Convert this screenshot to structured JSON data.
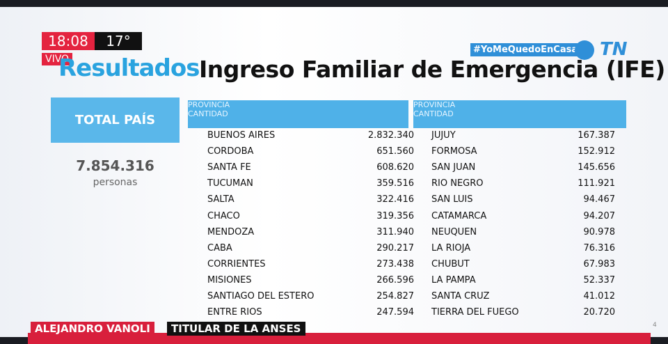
{
  "header": {
    "time": "18:08",
    "temperature": "17°",
    "live": "VIVO",
    "hashtag": "#YoMeQuedoEnCasa",
    "logo": "TN",
    "title_highlight": "Resultados",
    "title": "Ingreso Familiar de Emergencia (IFE)"
  },
  "total": {
    "label": "TOTAL PAÍS",
    "value": "7.854.316",
    "unit": "personas"
  },
  "tables": [
    {
      "headers": [
        "PROVINCIA",
        "CANTIDAD"
      ],
      "rows": [
        [
          "BUENOS AIRES",
          "2.832.340"
        ],
        [
          "CORDOBA",
          "651.560"
        ],
        [
          "SANTA FE",
          "608.620"
        ],
        [
          "TUCUMAN",
          "359.516"
        ],
        [
          "SALTA",
          "322.416"
        ],
        [
          "CHACO",
          "319.356"
        ],
        [
          "MENDOZA",
          "311.940"
        ],
        [
          "CABA",
          "290.217"
        ],
        [
          "CORRIENTES",
          "273.438"
        ],
        [
          "MISIONES",
          "266.596"
        ],
        [
          "SANTIAGO DEL ESTERO",
          "254.827"
        ],
        [
          "ENTRE RIOS",
          "247.594"
        ]
      ]
    },
    {
      "headers": [
        "PROVINCIA",
        "CANTIDAD"
      ],
      "rows": [
        [
          "JUJUY",
          "167.387"
        ],
        [
          "FORMOSA",
          "152.912"
        ],
        [
          "SAN JUAN",
          "145.656"
        ],
        [
          "RIO NEGRO",
          "111.921"
        ],
        [
          "SAN LUIS",
          "94.467"
        ],
        [
          "CATAMARCA",
          "94.207"
        ],
        [
          "NEUQUEN",
          "90.978"
        ],
        [
          "LA RIOJA",
          "76.316"
        ],
        [
          "CHUBUT",
          "67.983"
        ],
        [
          "LA PAMPA",
          "52.337"
        ],
        [
          "SANTA CRUZ",
          "41.012"
        ],
        [
          "TIERRA DEL FUEGO",
          "20.720"
        ]
      ]
    }
  ],
  "lower_third": {
    "name": "ALEJANDRO VANOLI",
    "role": "TITULAR DE LA ANSES"
  },
  "page_number": "4"
}
